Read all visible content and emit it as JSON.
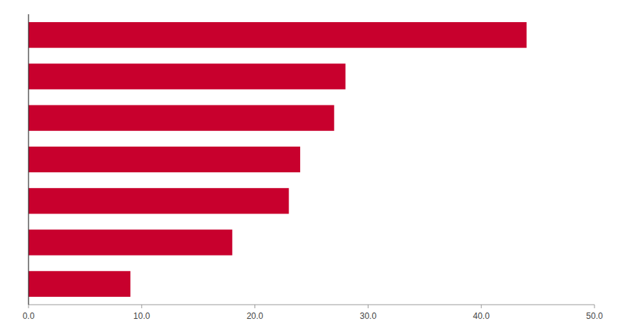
{
  "chart_data": {
    "type": "bar",
    "orientation": "horizontal",
    "categories": [
      null,
      null,
      null,
      null,
      null,
      null,
      null
    ],
    "values": [
      44.0,
      28.0,
      27.0,
      24.0,
      23.0,
      18.0,
      9.0
    ],
    "color": "#C8002D",
    "xlim": [
      0,
      50
    ],
    "xticks": [
      {
        "value": 0,
        "label": "0.0"
      },
      {
        "value": 10,
        "label": "10.0"
      },
      {
        "value": 20,
        "label": "20.0"
      },
      {
        "value": 30,
        "label": "30.0"
      },
      {
        "value": 40,
        "label": "40.0"
      },
      {
        "value": 50,
        "label": "50.0"
      }
    ],
    "tick_labels": "x",
    "grid": false
  }
}
